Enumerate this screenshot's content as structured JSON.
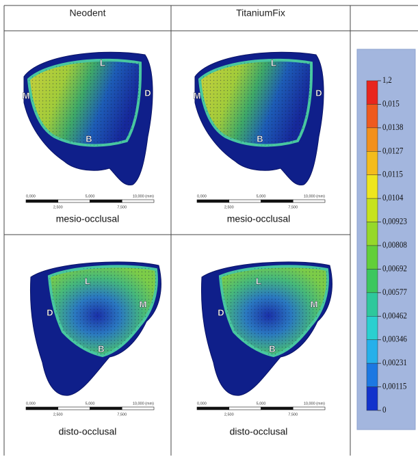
{
  "table": {
    "header": [
      "Neodent",
      "TitaniumFix"
    ],
    "rows": [
      {
        "cells": [
          {
            "markers": [
              "L",
              "M",
              "D",
              "B"
            ],
            "scale_top": [
              "0,000",
              "5,000",
              "10,000 (mm)"
            ],
            "scale_bottom": [
              "2,500",
              "7,500"
            ],
            "caption": "mesio-occlusal"
          },
          {
            "markers": [
              "L",
              "M",
              "D",
              "B"
            ],
            "scale_top": [
              "0,000",
              "5,000",
              "10,000 (mm)"
            ],
            "scale_bottom": [
              "2,500",
              "7,500"
            ],
            "caption": "mesio-occlusal"
          }
        ]
      },
      {
        "cells": [
          {
            "markers": [
              "L",
              "M",
              "D",
              "B"
            ],
            "scale_top": [
              "0,000",
              "5,000",
              "10,000 (mm)"
            ],
            "scale_bottom": [
              "2,500",
              "7,500"
            ],
            "caption": "disto-occlusal"
          },
          {
            "markers": [
              "L",
              "M",
              "D",
              "B"
            ],
            "scale_top": [
              "0,000",
              "5,000",
              "10,000 (mm)"
            ],
            "scale_bottom": [
              "2,500",
              "7,500"
            ],
            "caption": "disto-occlusal"
          }
        ]
      }
    ],
    "legend": {
      "labels": [
        "1,2",
        "0,015",
        "0,0138",
        "0,0127",
        "0,0115",
        "0,0104",
        "0,00923",
        "0,00808",
        "0,00692",
        "0,00577",
        "0,00462",
        "0,00346",
        "0,00231",
        "0,00115",
        "0"
      ],
      "colors": [
        "#e8261e",
        "#ee5a1e",
        "#f2901c",
        "#f4bc1c",
        "#eee61e",
        "#c6e21e",
        "#96d82a",
        "#62cf3a",
        "#3cc75e",
        "#2ec89c",
        "#2ad0d0",
        "#26b0ea",
        "#1c78e2",
        "#1232cc"
      ]
    }
  }
}
